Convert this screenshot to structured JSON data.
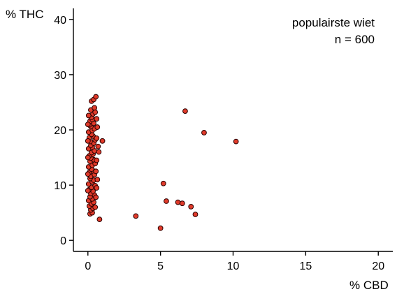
{
  "chart_data": {
    "type": "scatter",
    "title": "",
    "xlabel": "% CBD",
    "ylabel": "% THC",
    "xlim": [
      -1,
      21
    ],
    "ylim": [
      -2,
      42
    ],
    "xticks": [
      0,
      5,
      10,
      15,
      20
    ],
    "yticks": [
      0,
      10,
      20,
      30,
      40
    ],
    "grid": false,
    "annotations": [
      "populairste wiet",
      "n = 600"
    ],
    "point_color": "#e03a2a",
    "series": [
      {
        "values": [
          {
            "x": 0.15,
            "y": 4.8
          },
          {
            "x": 0.3,
            "y": 5.0
          },
          {
            "x": 0.2,
            "y": 5.5
          },
          {
            "x": 0.35,
            "y": 5.8
          },
          {
            "x": 0.1,
            "y": 6.2
          },
          {
            "x": 0.25,
            "y": 6.6
          },
          {
            "x": 0.4,
            "y": 6.9
          },
          {
            "x": 0.05,
            "y": 7.2
          },
          {
            "x": 0.3,
            "y": 7.5
          },
          {
            "x": 0.15,
            "y": 7.9
          },
          {
            "x": 0.45,
            "y": 8.2
          },
          {
            "x": 0.2,
            "y": 8.5
          },
          {
            "x": 0.35,
            "y": 8.9
          },
          {
            "x": 0.1,
            "y": 9.2
          },
          {
            "x": 0.25,
            "y": 9.6
          },
          {
            "x": 0.5,
            "y": 9.9
          },
          {
            "x": 0.05,
            "y": 10.2
          },
          {
            "x": 0.3,
            "y": 10.6
          },
          {
            "x": 0.4,
            "y": 10.9
          },
          {
            "x": 0.15,
            "y": 11.2
          },
          {
            "x": 0.2,
            "y": 11.6
          },
          {
            "x": 0.45,
            "y": 11.9
          },
          {
            "x": 0.1,
            "y": 12.3
          },
          {
            "x": 0.35,
            "y": 12.6
          },
          {
            "x": 0.25,
            "y": 12.9
          },
          {
            "x": 0.05,
            "y": 13.3
          },
          {
            "x": 0.3,
            "y": 13.6
          },
          {
            "x": 0.5,
            "y": 13.9
          },
          {
            "x": 0.15,
            "y": 14.3
          },
          {
            "x": 0.4,
            "y": 14.6
          },
          {
            "x": 0.2,
            "y": 14.9
          },
          {
            "x": 0.1,
            "y": 15.3
          },
          {
            "x": 0.35,
            "y": 15.6
          },
          {
            "x": 0.25,
            "y": 15.9
          },
          {
            "x": 0.45,
            "y": 16.2
          },
          {
            "x": 0.05,
            "y": 16.6
          },
          {
            "x": 0.3,
            "y": 16.9
          },
          {
            "x": 0.2,
            "y": 17.2
          },
          {
            "x": 0.4,
            "y": 17.6
          },
          {
            "x": 0.15,
            "y": 17.9
          },
          {
            "x": 0.5,
            "y": 18.2
          },
          {
            "x": 0.1,
            "y": 18.6
          },
          {
            "x": 0.35,
            "y": 18.9
          },
          {
            "x": 0.25,
            "y": 19.2
          },
          {
            "x": 0.05,
            "y": 19.6
          },
          {
            "x": 0.3,
            "y": 19.9
          },
          {
            "x": 0.45,
            "y": 20.2
          },
          {
            "x": 0.2,
            "y": 20.6
          },
          {
            "x": 0.1,
            "y": 20.9
          },
          {
            "x": 0.4,
            "y": 21.2
          },
          {
            "x": 0.15,
            "y": 21.6
          },
          {
            "x": 0.3,
            "y": 21.9
          },
          {
            "x": 0.25,
            "y": 22.3
          },
          {
            "x": 0.05,
            "y": 22.6
          },
          {
            "x": 0.35,
            "y": 22.9
          },
          {
            "x": 0.5,
            "y": 23.2
          },
          {
            "x": 0.2,
            "y": 23.6
          },
          {
            "x": 0.45,
            "y": 24.0
          },
          {
            "x": 0.25,
            "y": 25.2
          },
          {
            "x": 0.4,
            "y": 25.5
          },
          {
            "x": 0.55,
            "y": 26.0
          },
          {
            "x": 0.6,
            "y": 22.0
          },
          {
            "x": 0.65,
            "y": 20.5
          },
          {
            "x": 0.6,
            "y": 18.5
          },
          {
            "x": 0.7,
            "y": 17.0
          },
          {
            "x": 0.75,
            "y": 16.0
          },
          {
            "x": 0.6,
            "y": 14.5
          },
          {
            "x": 0.55,
            "y": 12.5
          },
          {
            "x": 0.65,
            "y": 11.0
          },
          {
            "x": 0.6,
            "y": 9.5
          },
          {
            "x": 0.55,
            "y": 7.8
          },
          {
            "x": 0.5,
            "y": 6.0
          },
          {
            "x": 1.0,
            "y": 18.0
          },
          {
            "x": 0.8,
            "y": 3.8
          },
          {
            "x": 0.0,
            "y": 15.0
          },
          {
            "x": 0.0,
            "y": 12.0
          },
          {
            "x": 0.0,
            "y": 9.0
          },
          {
            "x": 0.0,
            "y": 18.0
          },
          {
            "x": 0.0,
            "y": 21.0
          },
          {
            "x": 3.3,
            "y": 4.4
          },
          {
            "x": 5.0,
            "y": 2.2
          },
          {
            "x": 5.2,
            "y": 10.3
          },
          {
            "x": 5.4,
            "y": 7.1
          },
          {
            "x": 6.2,
            "y": 6.9
          },
          {
            "x": 6.5,
            "y": 6.7
          },
          {
            "x": 6.7,
            "y": 23.4
          },
          {
            "x": 7.1,
            "y": 6.1
          },
          {
            "x": 7.4,
            "y": 4.7
          },
          {
            "x": 8.0,
            "y": 19.5
          },
          {
            "x": 10.2,
            "y": 17.9
          }
        ]
      }
    ]
  }
}
